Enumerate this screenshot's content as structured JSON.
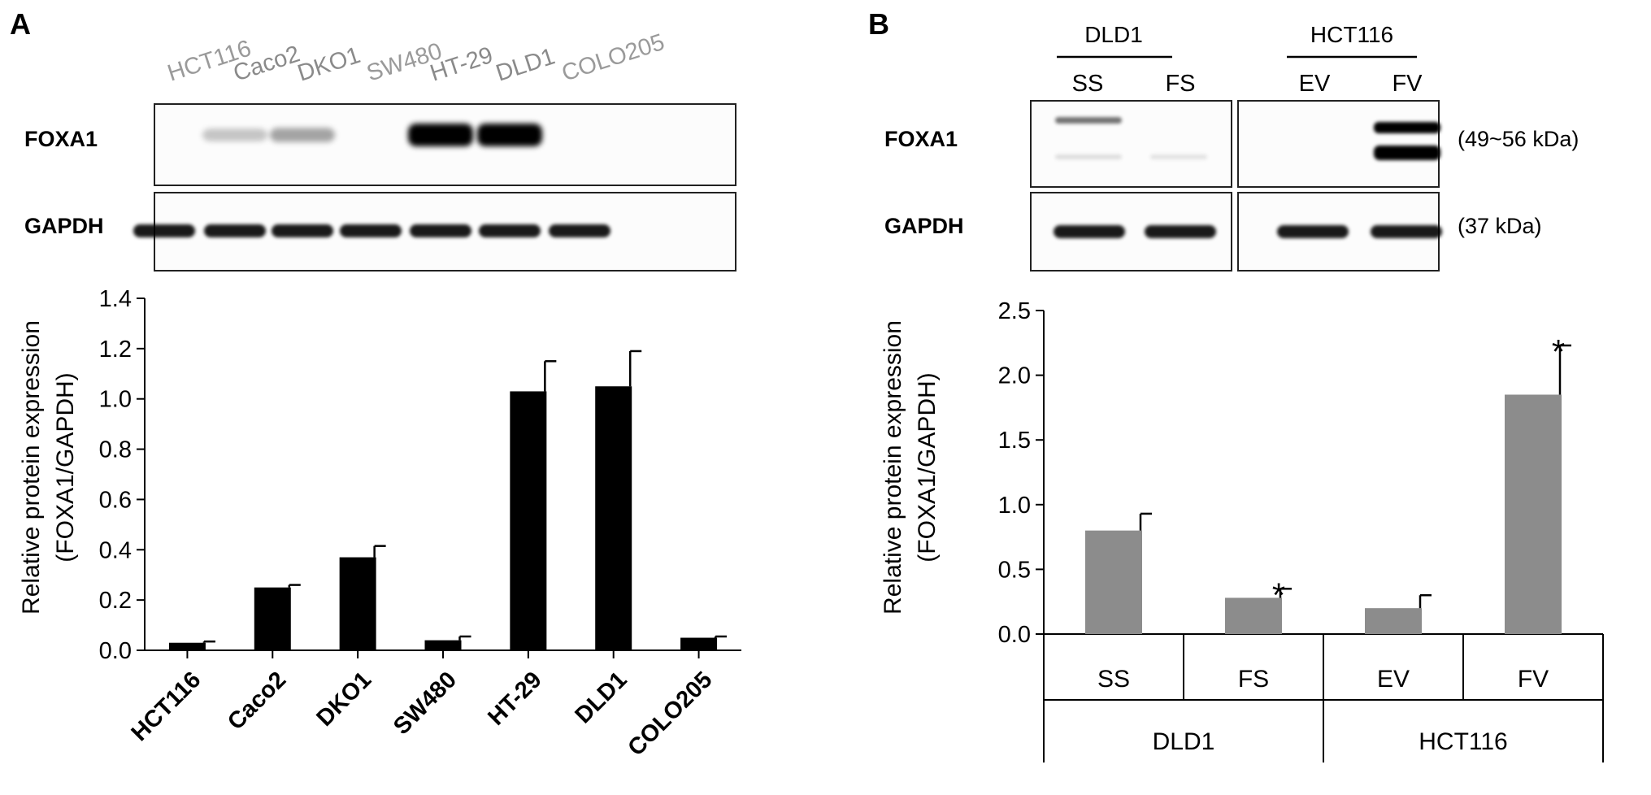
{
  "panel_a": {
    "letter": "A",
    "blot_lanes": [
      "HCT116",
      "Caco2",
      "DKO1",
      "SW480",
      "HT-29",
      "DLD1",
      "COLO205"
    ],
    "blot_rows": [
      "FOXA1",
      "GAPDH"
    ],
    "foxa1_band_intensity": [
      0.0,
      0.22,
      0.35,
      0.0,
      1.0,
      1.0,
      0.0
    ],
    "gapdh_band_intensity": [
      0.9,
      0.9,
      0.9,
      0.9,
      0.9,
      0.9,
      0.9
    ]
  },
  "panel_b": {
    "letter": "B",
    "group_labels": [
      "DLD1",
      "HCT116"
    ],
    "blot_lanes": [
      "SS",
      "FS",
      "EV",
      "FV"
    ],
    "blot_rows": [
      "FOXA1",
      "GAPDH"
    ],
    "mw_labels": [
      "(49~56 kDa)",
      "(37 kDa)"
    ],
    "foxa1_band_intensity": [
      0.55,
      0.05,
      0.0,
      1.0
    ],
    "gapdh_band_intensity": [
      0.9,
      0.9,
      0.9,
      0.9
    ]
  },
  "chart_data": [
    {
      "type": "bar",
      "panel": "A",
      "categories": [
        "HCT116",
        "Caco2",
        "DKO1",
        "SW480",
        "HT-29",
        "DLD1",
        "COLO205"
      ],
      "values": [
        0.03,
        0.25,
        0.37,
        0.04,
        1.03,
        1.05,
        0.05
      ],
      "errors": [
        0.005,
        0.01,
        0.045,
        0.015,
        0.12,
        0.14,
        0.005
      ],
      "ylabel_line1": "Relative protein expression",
      "ylabel_line2": "(FOXA1/GAPDH)",
      "ylim": [
        0,
        1.4
      ],
      "yticks": [
        0,
        0.2,
        0.4,
        0.6,
        0.8,
        1.0,
        1.2,
        1.4
      ],
      "ytick_labels": [
        "0.0",
        "0.2",
        "0.4",
        "0.6",
        "0.8",
        "1.0",
        "1.2",
        "1.4"
      ],
      "bar_color": "#000000",
      "grid": false
    },
    {
      "type": "bar",
      "panel": "B",
      "categories": [
        "SS",
        "FS",
        "EV",
        "FV"
      ],
      "groups": [
        "DLD1",
        "HCT116"
      ],
      "values": [
        0.8,
        0.28,
        0.2,
        1.85
      ],
      "errors": [
        0.13,
        0.07,
        0.1,
        0.38
      ],
      "significance": [
        "",
        "*",
        "",
        "*"
      ],
      "ylabel_line1": "Relative protein expression",
      "ylabel_line2": "(FOXA1/GAPDH)",
      "ylim": [
        0,
        2.5
      ],
      "yticks": [
        0,
        0.5,
        1.0,
        1.5,
        2.0,
        2.5
      ],
      "ytick_labels": [
        "0.0",
        "0.5",
        "1.0",
        "1.5",
        "2.0",
        "2.5"
      ],
      "bar_color": "#8c8c8c",
      "grid": false
    }
  ]
}
